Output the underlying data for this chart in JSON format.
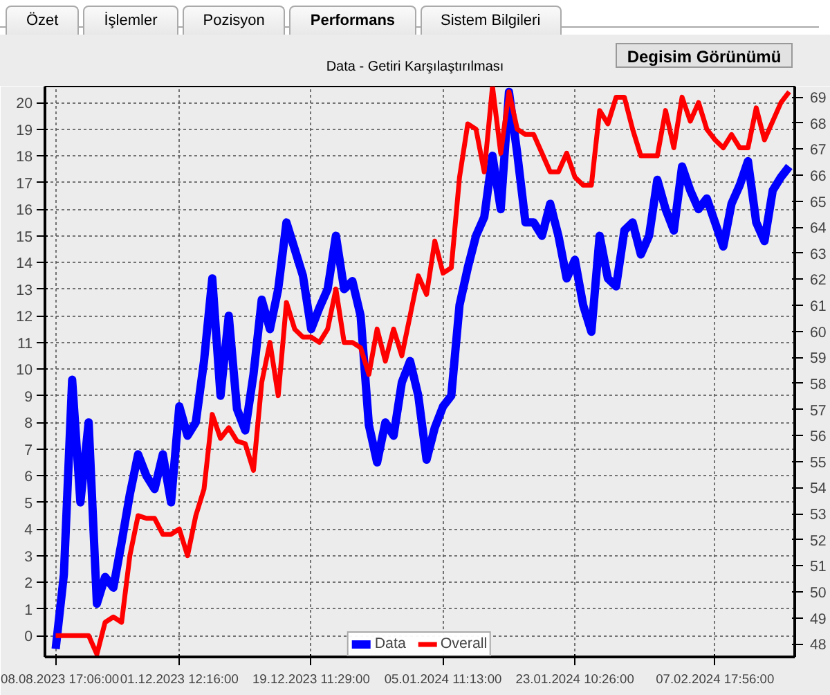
{
  "chart_data": {
    "type": "line",
    "title": "Data - Getiri Karşılaştırılması",
    "annotations": [
      "Özet",
      "İşlemler",
      "Pozisyon",
      "Performans",
      "Sistem Bilgileri",
      "Degisim Görünümü"
    ],
    "categories": [
      "08.08.2023 17:06:00",
      null,
      null,
      null,
      null,
      null,
      null,
      null,
      null,
      null,
      null,
      null,
      null,
      null,
      null,
      "01.12.2023 12:16:00",
      null,
      null,
      null,
      null,
      null,
      null,
      null,
      null,
      null,
      null,
      null,
      null,
      null,
      null,
      null,
      "19.12.2023 11:29:00",
      null,
      null,
      null,
      null,
      null,
      null,
      null,
      null,
      null,
      null,
      null,
      null,
      null,
      null,
      null,
      "05.01.2024 11:13:00",
      null,
      null,
      null,
      null,
      null,
      null,
      null,
      null,
      null,
      null,
      null,
      null,
      null,
      null,
      null,
      "23.01.2024 10:26:00",
      null,
      null,
      null,
      null,
      null,
      null,
      null,
      null,
      null,
      null,
      null,
      null,
      null,
      null,
      null,
      null,
      "07.02.2024 17:56:00",
      null,
      null,
      null,
      null,
      null,
      null,
      null,
      null,
      null
    ],
    "ylim": [
      -0.8,
      20.6
    ],
    "yticks": [
      0,
      1,
      2,
      3,
      4,
      5,
      6,
      7,
      8,
      9,
      10,
      11,
      12,
      13,
      14,
      15,
      16,
      17,
      18,
      19,
      20
    ],
    "y2lim": [
      47.5,
      69.4
    ],
    "y2ticks": [
      48,
      49,
      50,
      51,
      52,
      53,
      54,
      55,
      56,
      57,
      58,
      59,
      60,
      61,
      62,
      63,
      64,
      65,
      66,
      67,
      68,
      69
    ],
    "grid": true,
    "legend": "bottom",
    "line_style": "solid",
    "series": [
      {
        "name": "Data",
        "color": "#0000ff",
        "values": [
          -0.5,
          2.3,
          9.6,
          5.0,
          8.0,
          1.2,
          2.2,
          1.8,
          3.5,
          5.3,
          6.8,
          6.0,
          5.5,
          6.8,
          5.0,
          8.6,
          7.5,
          8.0,
          10.3,
          13.4,
          9.0,
          12.0,
          8.5,
          7.7,
          9.8,
          12.6,
          11.5,
          13.0,
          15.5,
          14.5,
          13.5,
          11.5,
          12.3,
          13.0,
          15.0,
          13.0,
          13.3,
          12.0,
          7.9,
          6.5,
          8.0,
          7.5,
          9.5,
          10.3,
          9.0,
          6.6,
          7.8,
          8.6,
          9.0,
          12.4,
          13.8,
          15.0,
          15.7,
          18.0,
          16.0,
          20.4,
          18.1,
          15.5,
          15.5,
          15.0,
          16.2,
          15.0,
          13.4,
          14.1,
          12.4,
          11.4,
          15.0,
          13.4,
          13.1,
          15.2,
          15.5,
          14.3,
          15.0,
          17.1,
          16.0,
          15.2,
          17.6,
          16.7,
          16.0,
          16.4,
          15.5,
          14.6,
          16.2,
          16.9,
          17.8,
          15.5,
          14.8,
          16.7,
          17.2,
          17.6
        ]
      },
      {
        "name": "Overall",
        "color": "#ff0000",
        "values": [
          0,
          0,
          0,
          0,
          0,
          -0.7,
          0.5,
          0.7,
          0.5,
          3.0,
          4.5,
          4.4,
          4.4,
          3.8,
          3.8,
          4.0,
          3.0,
          4.5,
          5.5,
          8.3,
          7.4,
          7.8,
          7.3,
          7.2,
          6.2,
          9.5,
          11.0,
          9.0,
          12.5,
          11.5,
          11.2,
          11.2,
          11.0,
          11.5,
          13.0,
          11.0,
          11.0,
          10.8,
          9.8,
          11.5,
          10.3,
          11.5,
          10.5,
          12.0,
          13.5,
          12.8,
          14.8,
          13.6,
          13.8,
          17.2,
          19.2,
          19.0,
          17.4,
          20.6,
          18.1,
          20.4,
          19.0,
          18.8,
          18.8,
          18.1,
          17.4,
          17.4,
          18.1,
          17.2,
          16.9,
          16.9,
          19.7,
          19.2,
          20.2,
          20.2,
          19.0,
          18.0,
          18.0,
          18.0,
          19.7,
          18.3,
          20.2,
          19.3,
          20.0,
          19.0,
          18.6,
          18.3,
          18.8,
          18.3,
          18.3,
          19.8,
          18.6,
          19.3,
          20.0,
          20.4
        ]
      }
    ]
  }
}
